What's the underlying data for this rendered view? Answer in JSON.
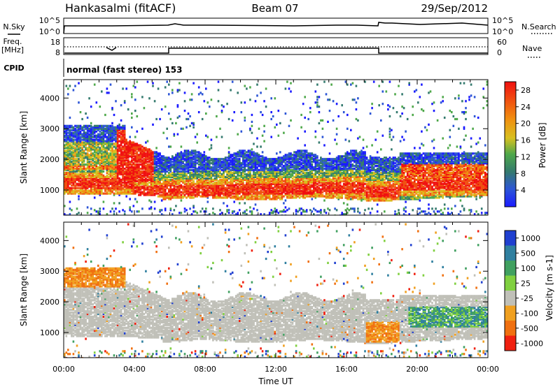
{
  "header": {
    "station": "Hankasalmi (fitACF)",
    "beam": "Beam 07",
    "date": "29/Sep/2012"
  },
  "status_panels": {
    "nsky_label": "N.Sky",
    "nsearch_label": "N.Search",
    "noise_ticks_left": [
      "10^5",
      "10^0"
    ],
    "noise_ticks_right": [
      "10^5",
      "10^0"
    ],
    "freq_label_line1": "Freq.",
    "freq_label_line2": "[MHz]",
    "freq_ticks": [
      "18",
      "8"
    ],
    "nave_label": "Nave",
    "nave_ticks": [
      "60",
      "0"
    ],
    "cpid_label": "CPID",
    "cpid_text": "normal (fast stereo) 153"
  },
  "chart_data": [
    {
      "type": "heatmap",
      "name": "power",
      "xlabel": "",
      "ylabel": "Slant Range [km]",
      "xlim": [
        0,
        24
      ],
      "ylim": [
        180,
        4600
      ],
      "y_ticks": [
        "1000",
        "2000",
        "3000",
        "4000"
      ],
      "colorbar_label": "Power [dB]",
      "colorbar_ticks": [
        "4",
        "8",
        "12",
        "16",
        "20",
        "24",
        "28"
      ],
      "colorbar_range": [
        0,
        30
      ],
      "colorbar_colors": [
        "#1b1bff",
        "#2c55d6",
        "#347a6e",
        "#4ea84a",
        "#d8c020",
        "#f09010",
        "#f05010",
        "#f01010"
      ],
      "bands": [
        {
          "range_km": [
            900,
            1300
          ],
          "hours": [
            0,
            24
          ],
          "level": "high"
        },
        {
          "range_km": [
            1300,
            1800
          ],
          "hours": [
            4,
            18
          ],
          "level": "medium"
        },
        {
          "range_km": [
            1800,
            3200
          ],
          "hours": [
            0,
            4
          ],
          "level": "mixed"
        },
        {
          "range_km": [
            1900,
            2400
          ],
          "hours": [
            6,
            18
          ],
          "level": "low"
        },
        {
          "range_km": [
            700,
            1600
          ],
          "hours": [
            17,
            19
          ],
          "level": "high"
        },
        {
          "range_km": [
            1400,
            2000
          ],
          "hours": [
            19,
            24
          ],
          "level": "high"
        }
      ]
    },
    {
      "type": "heatmap",
      "name": "velocity",
      "xlabel": "Time UT",
      "ylabel": "Slant Range [km]",
      "xlim": [
        0,
        24
      ],
      "ylim": [
        180,
        4600
      ],
      "x_ticks": [
        "00:00",
        "04:00",
        "08:00",
        "12:00",
        "16:00",
        "20:00",
        "00:00"
      ],
      "y_ticks": [
        "1000",
        "2000",
        "3000",
        "4000"
      ],
      "colorbar_label": "Velocity [m s-1]",
      "colorbar_ticks": [
        "1000",
        "500",
        "100",
        "25",
        "-25",
        "-100",
        "-500",
        "-1000"
      ],
      "colorbar_colors": [
        "#2040d0",
        "#3080a0",
        "#40a060",
        "#80d040",
        "#c0c0b8",
        "#f0a020",
        "#f07010",
        "#f02010"
      ],
      "bands": [
        {
          "range_km": [
            900,
            1600
          ],
          "hours": [
            4,
            17
          ],
          "level": "ground-scatter"
        },
        {
          "range_km": [
            2500,
            3200
          ],
          "hours": [
            0,
            4
          ],
          "level": "negative"
        },
        {
          "range_km": [
            700,
            1300
          ],
          "hours": [
            17,
            19
          ],
          "level": "negative"
        },
        {
          "range_km": [
            1300,
            1900
          ],
          "hours": [
            19,
            24
          ],
          "level": "positive"
        }
      ]
    }
  ]
}
